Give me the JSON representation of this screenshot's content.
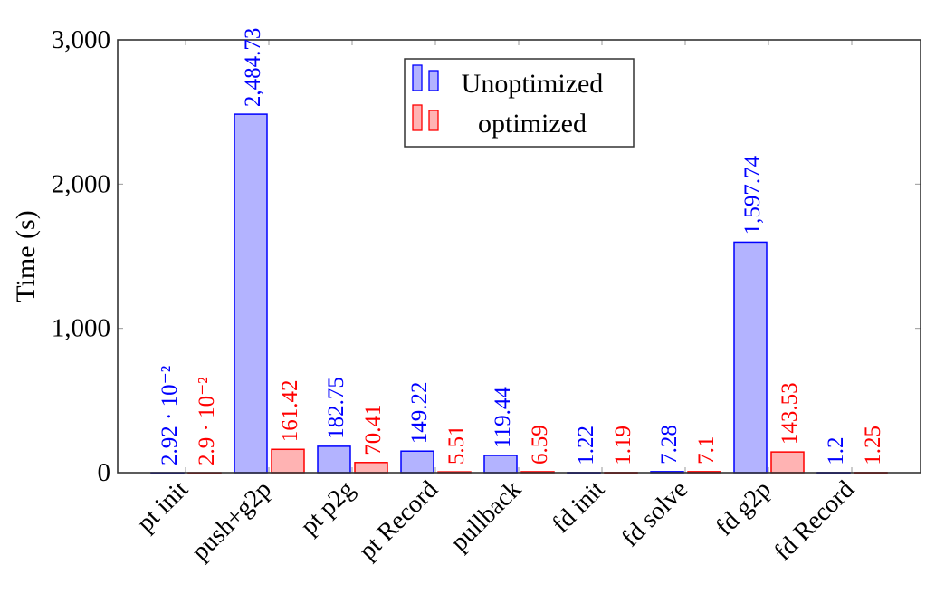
{
  "chart_data": {
    "type": "bar",
    "title": "",
    "xlabel": "",
    "ylabel": "Time (s)",
    "ylim": [
      0,
      3000
    ],
    "yticks": [
      0,
      1000,
      2000,
      3000
    ],
    "ytick_labels": [
      "0",
      "1,000",
      "2,000",
      "3,000"
    ],
    "categories": [
      "pt init",
      "push+g2p",
      "pt p2g",
      "pt Record",
      "pullback",
      "fd init",
      "fd solve",
      "fd g2p",
      "fd Record"
    ],
    "series": [
      {
        "name": "Unoptimized",
        "stroke": "#0000ff",
        "fill": "#b3b3ff",
        "values": [
          0.0292,
          2484.73,
          182.75,
          149.22,
          119.44,
          1.22,
          7.28,
          1597.74,
          1.2
        ],
        "labels": [
          "2.92 · 10⁻²",
          "2,484.73",
          "182.75",
          "149.22",
          "119.44",
          "1.22",
          "7.28",
          "1,597.74",
          "1.2"
        ]
      },
      {
        "name": "optimized",
        "stroke": "#ff0000",
        "fill": "#ffb3b3",
        "values": [
          0.029,
          161.42,
          70.41,
          5.51,
          6.59,
          1.19,
          7.1,
          143.53,
          1.25
        ],
        "labels": [
          "2.9 · 10⁻²",
          "161.42",
          "70.41",
          "5.51",
          "6.59",
          "1.19",
          "7.1",
          "143.53",
          "1.25"
        ]
      }
    ],
    "legend": {
      "position": "top-center",
      "entries": [
        "Unoptimized",
        "optimized"
      ]
    },
    "grid": false
  }
}
